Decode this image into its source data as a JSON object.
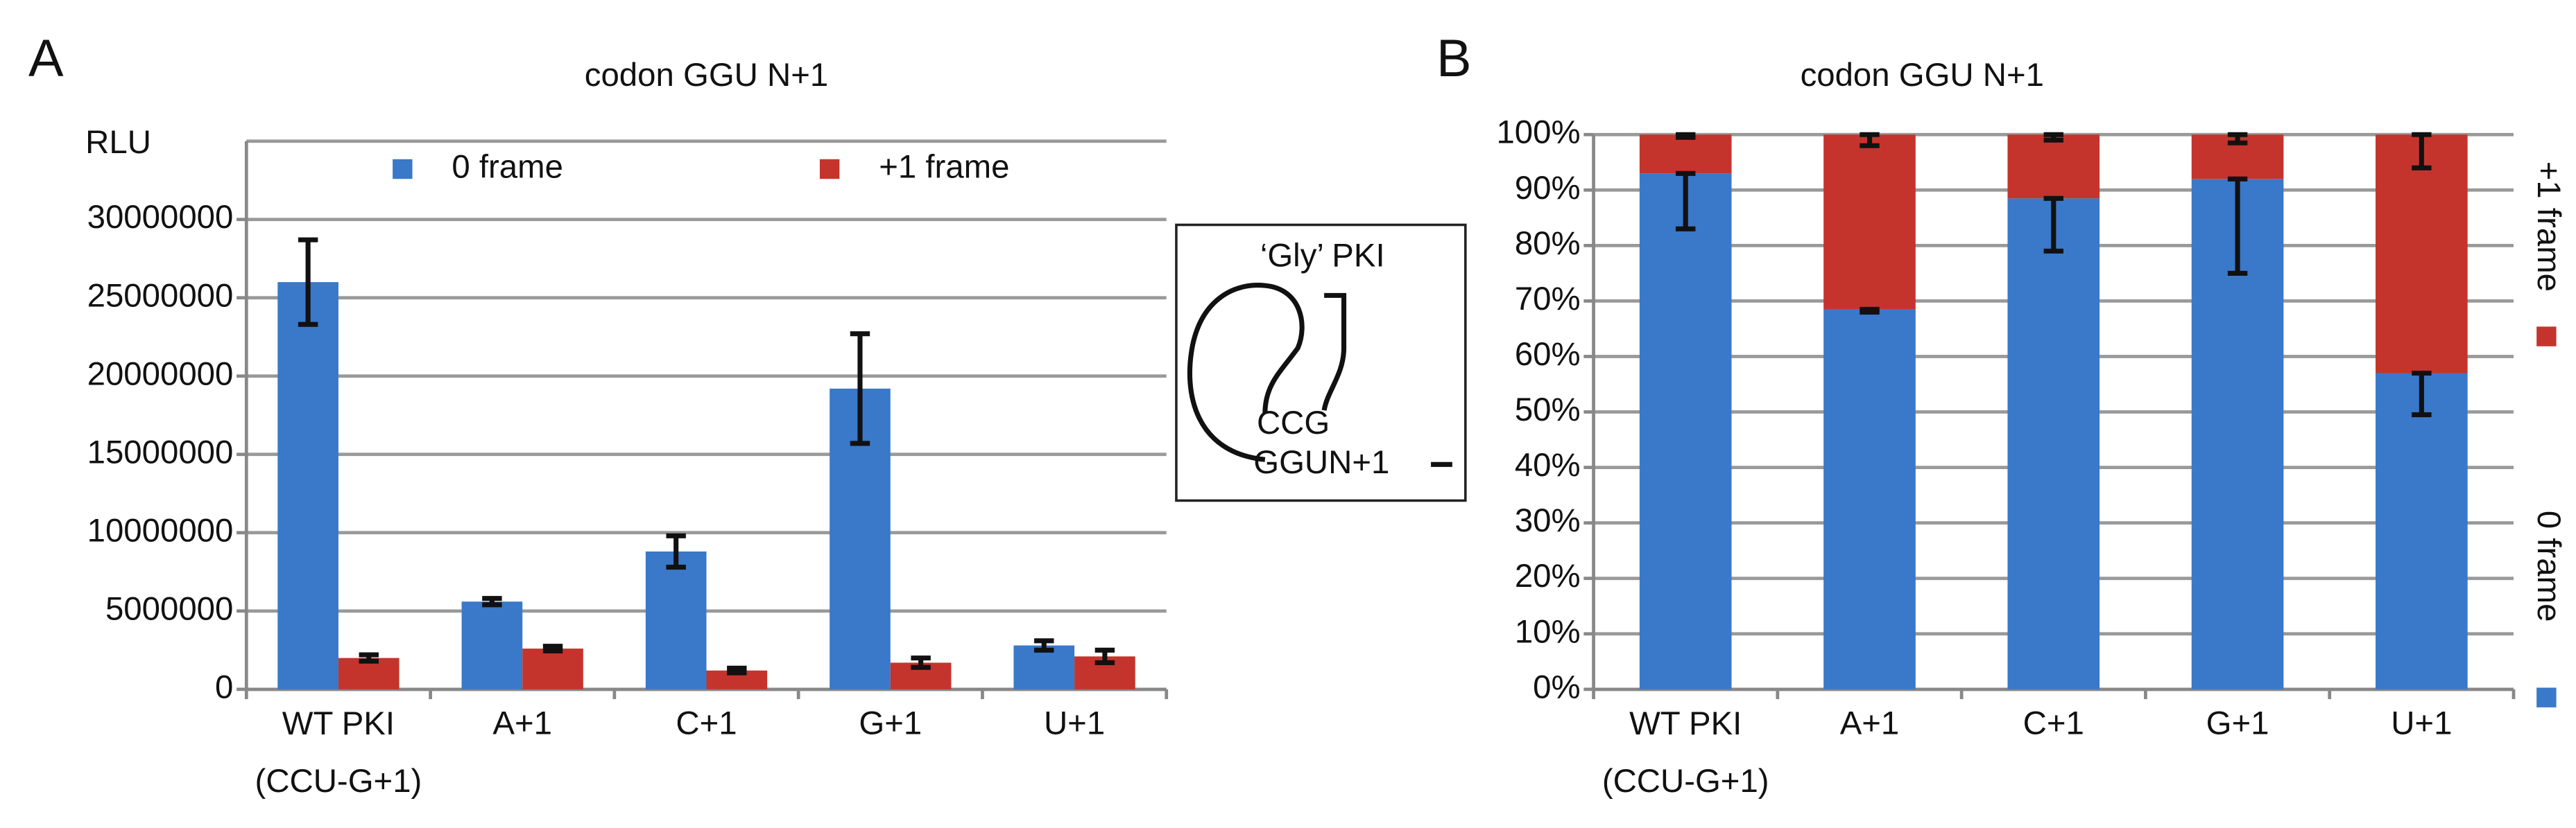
{
  "panel_labels": [
    "A",
    "B"
  ],
  "inset": {
    "title": "‘Gly’ PKI",
    "labels": [
      "CCG",
      "GGUN+1"
    ]
  },
  "chart_data": [
    {
      "type": "bar",
      "title": "codon GGU N+1",
      "y_label": "RLU",
      "categories": [
        "WT PKI (CCU-G+1)",
        "A+1",
        "C+1",
        "G+1",
        "U+1"
      ],
      "series": [
        {
          "name": "0 frame",
          "color": "#3a78c9",
          "values": [
            26000000,
            5600000,
            8800000,
            19200000,
            2800000
          ],
          "errors": [
            2700000,
            200000,
            1000000,
            3500000,
            300000
          ]
        },
        {
          "name": "+1 frame",
          "color": "#c4342d",
          "values": [
            2000000,
            2600000,
            1200000,
            1700000,
            2100000
          ],
          "errors": [
            200000,
            150000,
            150000,
            300000,
            400000
          ]
        }
      ],
      "ylim": [
        0,
        35000000
      ],
      "yticks": [
        0,
        5000000,
        10000000,
        15000000,
        20000000,
        25000000,
        30000000
      ],
      "grid": true,
      "legend": "top"
    },
    {
      "type": "stacked_bar",
      "title": "codon GGU N+1",
      "categories": [
        "WT PKI (CCU-G+1)",
        "A+1",
        "C+1",
        "G+1",
        "U+1"
      ],
      "series": [
        {
          "name": "0 frame",
          "color": "#3a78c9",
          "values": [
            93,
            68.5,
            88.5,
            92,
            57
          ],
          "errors": [
            10,
            0.5,
            9.5,
            17,
            7.5
          ]
        },
        {
          "name": "+1 frame",
          "color": "#c4342d",
          "values": [
            7,
            31.5,
            11.5,
            8,
            43
          ],
          "errors": [
            0.5,
            2,
            1,
            1.5,
            6
          ]
        }
      ],
      "ylim": [
        0,
        100
      ],
      "yticks": [
        {
          "value": 0,
          "label": "0%"
        },
        {
          "value": 10,
          "label": "10%"
        },
        {
          "value": 20,
          "label": "20%"
        },
        {
          "value": 30,
          "label": "30%"
        },
        {
          "value": 40,
          "label": "40%"
        },
        {
          "value": 50,
          "label": "50%"
        },
        {
          "value": 60,
          "label": "60%"
        },
        {
          "value": 70,
          "label": "70%"
        },
        {
          "value": 80,
          "label": "80%"
        },
        {
          "value": 90,
          "label": "90%"
        },
        {
          "value": 100,
          "label": "100%"
        }
      ],
      "grid": true,
      "legend": "right"
    }
  ]
}
